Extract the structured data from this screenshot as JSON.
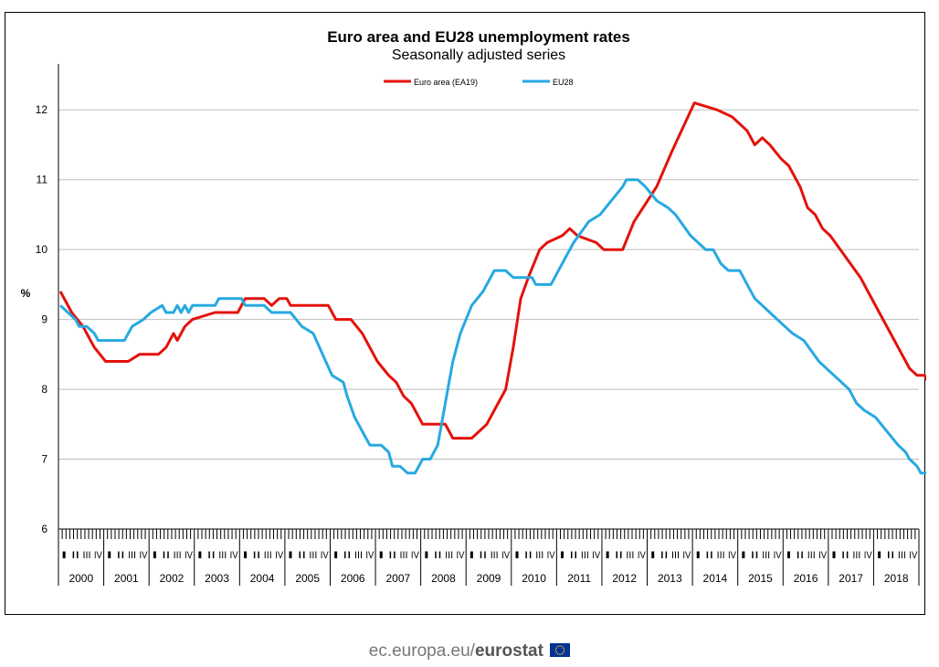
{
  "chart_data": {
    "type": "line",
    "title": "Euro area and EU28 unemployment rates",
    "subtitle": "Seasonally adjusted series",
    "ylabel": "%",
    "xlabel": "",
    "ylim": [
      6,
      12.5
    ],
    "yticks": [
      6,
      7,
      8,
      9,
      10,
      11,
      12
    ],
    "x_years": [
      "2000",
      "2001",
      "2002",
      "2003",
      "2004",
      "2005",
      "2006",
      "2007",
      "2008",
      "2009",
      "2010",
      "2011",
      "2012",
      "2013",
      "2014",
      "2015",
      "2016",
      "2017",
      "2018"
    ],
    "quarter_labels": [
      "I",
      "II",
      "III",
      "IV"
    ],
    "x_unit": "month",
    "grid": true,
    "legend": "top-center",
    "series": [
      {
        "name": "Euro area (EA19)",
        "color": "#e3120b",
        "points": [
          [
            "2000-01",
            9.4
          ],
          [
            "2000-04",
            9.1
          ],
          [
            "2000-07",
            8.9
          ],
          [
            "2000-09",
            8.7
          ],
          [
            "2000-10",
            8.6
          ],
          [
            "2001-01",
            8.4
          ],
          [
            "2001-07",
            8.4
          ],
          [
            "2001-10",
            8.5
          ],
          [
            "2002-03",
            8.5
          ],
          [
            "2002-05",
            8.6
          ],
          [
            "2002-07",
            8.8
          ],
          [
            "2002-08",
            8.7
          ],
          [
            "2002-09",
            8.8
          ],
          [
            "2002-10",
            8.9
          ],
          [
            "2002-12",
            9.0
          ],
          [
            "2003-06",
            9.1
          ],
          [
            "2003-12",
            9.1
          ],
          [
            "2004-02",
            9.3
          ],
          [
            "2004-07",
            9.3
          ],
          [
            "2004-09",
            9.2
          ],
          [
            "2004-11",
            9.3
          ],
          [
            "2005-01",
            9.3
          ],
          [
            "2005-02",
            9.2
          ],
          [
            "2005-12",
            9.2
          ],
          [
            "2006-02",
            9.0
          ],
          [
            "2006-06",
            9.0
          ],
          [
            "2006-09",
            8.8
          ],
          [
            "2007-01",
            8.4
          ],
          [
            "2007-04",
            8.2
          ],
          [
            "2007-06",
            8.1
          ],
          [
            "2007-08",
            7.9
          ],
          [
            "2007-10",
            7.8
          ],
          [
            "2008-01",
            7.5
          ],
          [
            "2008-07",
            7.5
          ],
          [
            "2008-09",
            7.3
          ],
          [
            "2009-02",
            7.3
          ],
          [
            "2009-04",
            7.4
          ],
          [
            "2009-06",
            7.5
          ],
          [
            "2009-09",
            7.8
          ],
          [
            "2009-11",
            8.0
          ],
          [
            "2010-01",
            8.6
          ],
          [
            "2010-03",
            9.3
          ],
          [
            "2010-05",
            9.6
          ],
          [
            "2010-08",
            10.0
          ],
          [
            "2010-10",
            10.1
          ],
          [
            "2011-02",
            10.2
          ],
          [
            "2011-04",
            10.3
          ],
          [
            "2011-06",
            10.2
          ],
          [
            "2011-11",
            10.1
          ],
          [
            "2012-01",
            10.0
          ],
          [
            "2012-06",
            10.0
          ],
          [
            "2012-09",
            10.4
          ],
          [
            "2013-03",
            10.9
          ],
          [
            "2013-07",
            11.4
          ],
          [
            "2014-01",
            12.1
          ],
          [
            "2014-07",
            12.0
          ],
          [
            "2014-11",
            11.9
          ],
          [
            "2015-03",
            11.7
          ],
          [
            "2015-05",
            11.5
          ],
          [
            "2015-07",
            11.6
          ],
          [
            "2015-09",
            11.5
          ],
          [
            "2015-12",
            11.3
          ],
          [
            "2016-02",
            11.2
          ],
          [
            "2016-03",
            11.1
          ],
          [
            "2016-05",
            10.9
          ],
          [
            "2016-07",
            10.6
          ],
          [
            "2016-09",
            10.5
          ],
          [
            "2016-11",
            10.3
          ],
          [
            "2017-01",
            10.2
          ],
          [
            "2017-05",
            9.9
          ],
          [
            "2017-09",
            9.6
          ],
          [
            "2017-11",
            9.4
          ],
          [
            "2018-02",
            9.1
          ],
          [
            "2018-05",
            8.8
          ],
          [
            "2018-08",
            8.5
          ],
          [
            "2018-10",
            8.3
          ],
          [
            "2018-12",
            8.2
          ],
          [
            "2019-02",
            8.2
          ],
          [
            "2019-03",
            8.1
          ]
        ]
      },
      {
        "name": "EU28",
        "color": "#27a9e1",
        "points": [
          [
            "2000-01",
            9.2
          ],
          [
            "2000-03",
            9.1
          ],
          [
            "2000-05",
            9.0
          ],
          [
            "2000-06",
            8.9
          ],
          [
            "2000-08",
            8.9
          ],
          [
            "2000-10",
            8.8
          ],
          [
            "2000-11",
            8.7
          ],
          [
            "2001-06",
            8.7
          ],
          [
            "2001-07",
            8.8
          ],
          [
            "2001-08",
            8.9
          ],
          [
            "2001-11",
            9.0
          ],
          [
            "2002-01",
            9.1
          ],
          [
            "2002-04",
            9.2
          ],
          [
            "2002-05",
            9.1
          ],
          [
            "2002-07",
            9.1
          ],
          [
            "2002-08",
            9.2
          ],
          [
            "2002-09",
            9.1
          ],
          [
            "2002-10",
            9.2
          ],
          [
            "2002-11",
            9.1
          ],
          [
            "2002-12",
            9.2
          ],
          [
            "2003-06",
            9.2
          ],
          [
            "2003-07",
            9.3
          ],
          [
            "2004-01",
            9.3
          ],
          [
            "2004-02",
            9.2
          ],
          [
            "2004-07",
            9.2
          ],
          [
            "2004-09",
            9.1
          ],
          [
            "2005-02",
            9.1
          ],
          [
            "2005-05",
            8.9
          ],
          [
            "2005-08",
            8.8
          ],
          [
            "2006-01",
            8.2
          ],
          [
            "2006-04",
            8.1
          ],
          [
            "2006-05",
            7.9
          ],
          [
            "2006-07",
            7.6
          ],
          [
            "2006-09",
            7.4
          ],
          [
            "2006-11",
            7.2
          ],
          [
            "2007-02",
            7.2
          ],
          [
            "2007-04",
            7.1
          ],
          [
            "2007-05",
            6.9
          ],
          [
            "2007-07",
            6.9
          ],
          [
            "2007-09",
            6.8
          ],
          [
            "2007-11",
            6.8
          ],
          [
            "2008-01",
            7.0
          ],
          [
            "2008-03",
            7.0
          ],
          [
            "2008-05",
            7.2
          ],
          [
            "2008-06",
            7.5
          ],
          [
            "2008-08",
            8.1
          ],
          [
            "2008-09",
            8.4
          ],
          [
            "2008-11",
            8.8
          ],
          [
            "2009-02",
            9.2
          ],
          [
            "2009-05",
            9.4
          ],
          [
            "2009-06",
            9.5
          ],
          [
            "2009-08",
            9.7
          ],
          [
            "2009-11",
            9.7
          ],
          [
            "2010-01",
            9.6
          ],
          [
            "2010-06",
            9.6
          ],
          [
            "2010-07",
            9.5
          ],
          [
            "2010-11",
            9.5
          ],
          [
            "2011-01",
            9.7
          ],
          [
            "2011-05",
            10.1
          ],
          [
            "2011-09",
            10.4
          ],
          [
            "2011-12",
            10.5
          ],
          [
            "2012-03",
            10.7
          ],
          [
            "2012-06",
            10.9
          ],
          [
            "2012-07",
            11.0
          ],
          [
            "2012-10",
            11.0
          ],
          [
            "2012-12",
            10.9
          ],
          [
            "2013-03",
            10.7
          ],
          [
            "2013-06",
            10.6
          ],
          [
            "2013-08",
            10.5
          ],
          [
            "2013-12",
            10.2
          ],
          [
            "2014-04",
            10.0
          ],
          [
            "2014-06",
            10.0
          ],
          [
            "2014-08",
            9.8
          ],
          [
            "2014-10",
            9.7
          ],
          [
            "2015-01",
            9.7
          ],
          [
            "2015-03",
            9.5
          ],
          [
            "2015-05",
            9.3
          ],
          [
            "2015-09",
            9.1
          ],
          [
            "2016-01",
            8.9
          ],
          [
            "2016-03",
            8.8
          ],
          [
            "2016-06",
            8.7
          ],
          [
            "2016-10",
            8.4
          ],
          [
            "2017-02",
            8.2
          ],
          [
            "2017-04",
            8.1
          ],
          [
            "2017-06",
            8.0
          ],
          [
            "2017-08",
            7.8
          ],
          [
            "2017-10",
            7.7
          ],
          [
            "2018-01",
            7.6
          ],
          [
            "2018-04",
            7.4
          ],
          [
            "2018-07",
            7.2
          ],
          [
            "2018-09",
            7.1
          ],
          [
            "2018-10",
            7.0
          ],
          [
            "2018-12",
            6.9
          ],
          [
            "2019-01",
            6.8
          ],
          [
            "2019-03",
            6.8
          ]
        ]
      }
    ]
  },
  "footer": {
    "site": "ec.europa.eu/",
    "brand": "eurostat",
    "flag_color": "#003399",
    "star_color": "#ffcc00",
    "flag_icon": "eu-flag-icon"
  }
}
